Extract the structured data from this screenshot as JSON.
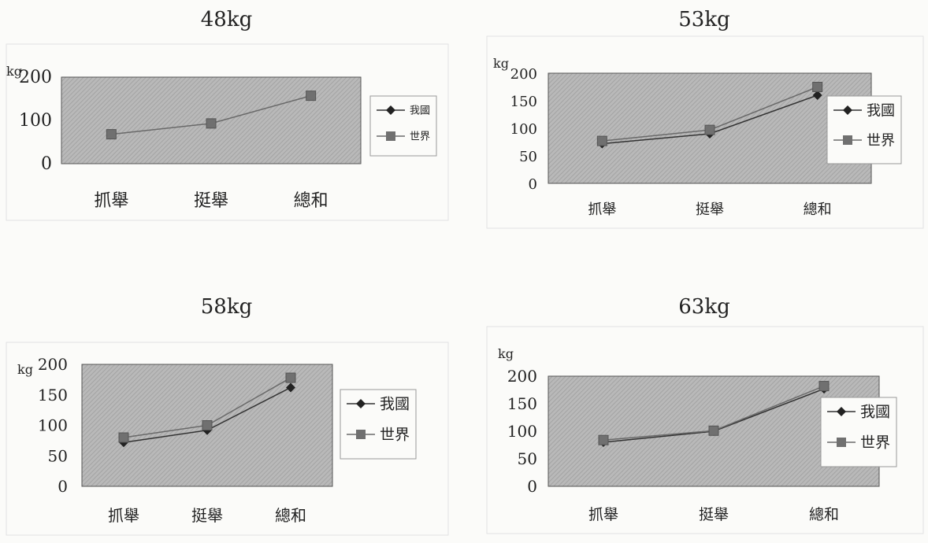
{
  "chart_data": [
    {
      "type": "line",
      "title": "48kg",
      "ylabel": "kg",
      "categories": [
        "抓舉",
        "挺舉",
        "總和"
      ],
      "ylim": [
        0,
        200
      ],
      "yticks": [
        "0",
        "100",
        "200"
      ],
      "series": [
        {
          "name": "我國",
          "values": [
            null,
            null,
            null
          ],
          "marker": "diamond",
          "color": "#333333"
        },
        {
          "name": "世界",
          "values": [
            68,
            93,
            157
          ],
          "marker": "square",
          "color": "#6a6a6a"
        }
      ],
      "legend": "right",
      "grid": false
    },
    {
      "type": "line",
      "title": "53kg",
      "ylabel": "kg",
      "categories": [
        "抓舉",
        "挺舉",
        "總和"
      ],
      "ylim": [
        0,
        200
      ],
      "yticks": [
        "0",
        "50",
        "100",
        "150",
        "200"
      ],
      "series": [
        {
          "name": "我國",
          "values": [
            72,
            90,
            160
          ],
          "marker": "diamond",
          "color": "#333333"
        },
        {
          "name": "世界",
          "values": [
            77,
            97,
            175
          ],
          "marker": "square",
          "color": "#6a6a6a"
        }
      ],
      "legend": "right",
      "grid": false
    },
    {
      "type": "line",
      "title": "58kg",
      "ylabel": "kg",
      "categories": [
        "抓舉",
        "挺舉",
        "總和"
      ],
      "ylim": [
        0,
        200
      ],
      "yticks": [
        "0",
        "50",
        "100",
        "150",
        "200"
      ],
      "series": [
        {
          "name": "我國",
          "values": [
            72,
            92,
            162
          ],
          "marker": "diamond",
          "color": "#333333"
        },
        {
          "name": "世界",
          "values": [
            80,
            100,
            178
          ],
          "marker": "square",
          "color": "#6a6a6a"
        }
      ],
      "legend": "right",
      "grid": false
    },
    {
      "type": "line",
      "title": "63kg",
      "ylabel": "kg",
      "categories": [
        "抓舉",
        "挺舉",
        "總和"
      ],
      "ylim": [
        0,
        200
      ],
      "yticks": [
        "0",
        "50",
        "100",
        "150",
        "200"
      ],
      "series": [
        {
          "name": "我國",
          "values": [
            80,
            100,
            177
          ],
          "marker": "diamond",
          "color": "#333333"
        },
        {
          "name": "世界",
          "values": [
            84,
            101,
            182
          ],
          "marker": "square",
          "color": "#6a6a6a"
        }
      ],
      "legend": "right",
      "grid": false
    }
  ]
}
